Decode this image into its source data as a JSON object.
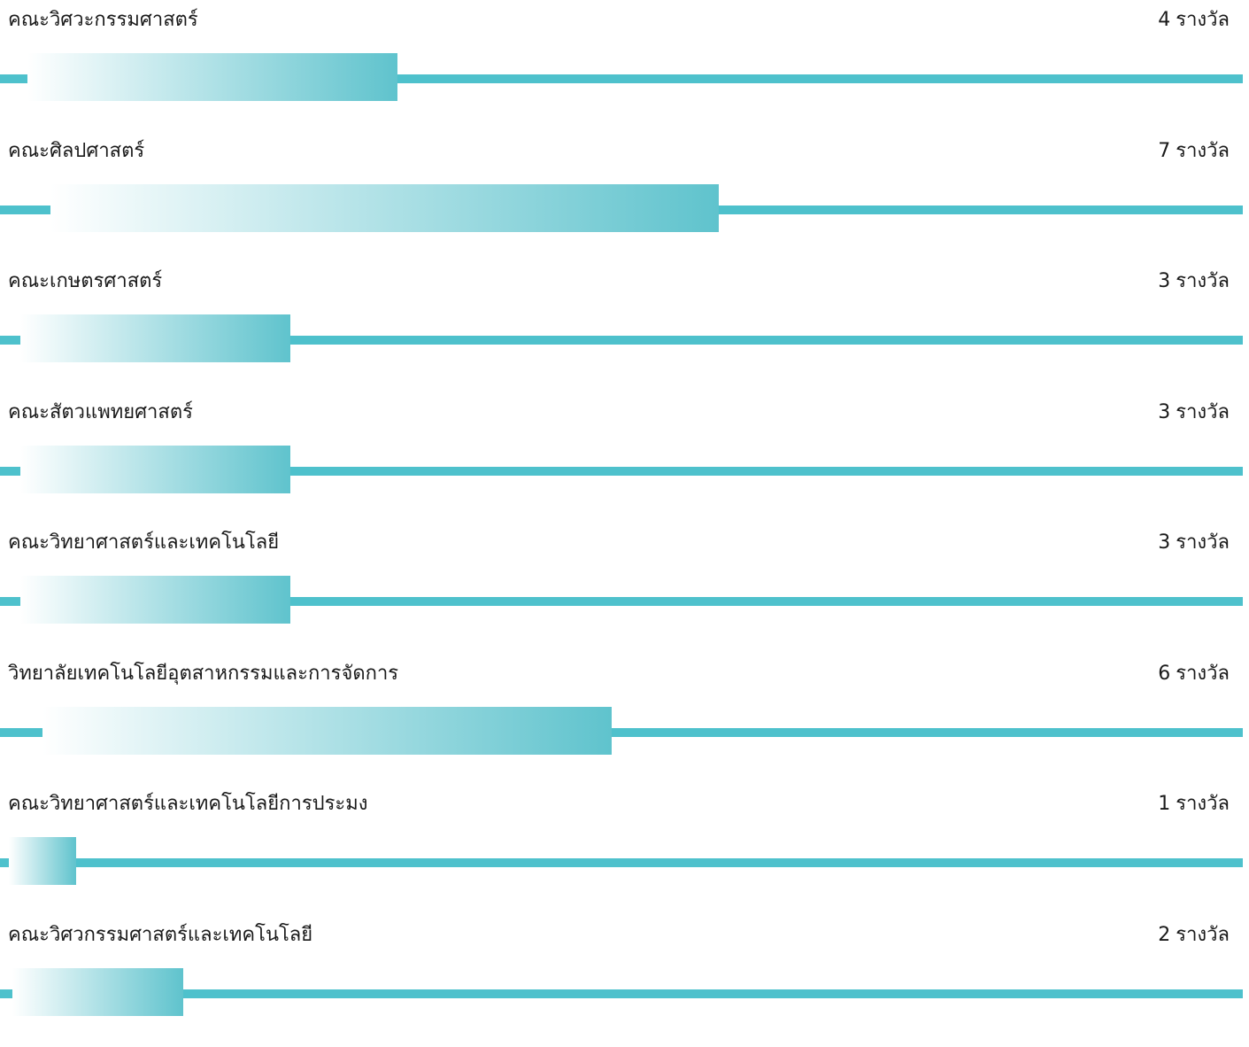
{
  "chart_data": {
    "type": "bar",
    "orientation": "horizontal",
    "categories": [
      "คณะวิศวะกรรมศาสตร์",
      "คณะศิลปศาสตร์",
      "คณะเกษตรศาสตร์",
      "คณะสัตวแพทยศาสตร์",
      "คณะวิทยาศาสตร์และเทคโนโลยี",
      "วิทยาลัยเทคโนโลยีอุตสาหกรรมและการจัดการ",
      "คณะวิทยาศาสตร์และเทคโนโลยีการประมง",
      "คณะวิศวกรรมศาสตร์และเทคโนโลยี"
    ],
    "values": [
      4,
      7,
      3,
      3,
      3,
      6,
      1,
      2
    ],
    "unit": "รางวัล",
    "title": "",
    "xlabel": "",
    "ylabel": "",
    "grid": false,
    "legend": "none"
  },
  "colors": {
    "accent": "#4ec1cc",
    "bar_start": "#ffffff",
    "bar_end": "#5fc3cd",
    "text": "#1a1a1a"
  }
}
